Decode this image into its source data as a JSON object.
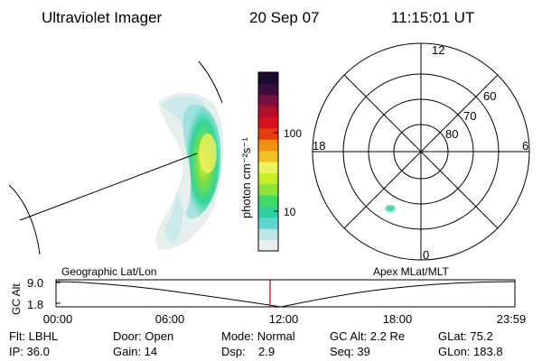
{
  "header": {
    "title": "Ultraviolet Imager",
    "date": "20 Sep 07",
    "time": "11:15:01 UT"
  },
  "colorbar": {
    "unit_label": "photon cm⁻²s⁻¹",
    "tick_labels": [
      "100",
      "10"
    ],
    "colors": [
      "#e8eeee",
      "#bfe6e6",
      "#5fd6d2",
      "#2fd0a0",
      "#41d86a",
      "#8fe23a",
      "#c8ee2a",
      "#eef062",
      "#f0c020",
      "#f09010",
      "#e83a10",
      "#d81020",
      "#b0102a",
      "#7a1040",
      "#3c0c3c",
      "#1a0a30"
    ]
  },
  "polar_plot": {
    "mlt_labels": {
      "top": "12",
      "right": "6",
      "bottom": "0",
      "left": "18"
    },
    "lat_labels": [
      "60",
      "70",
      "80"
    ]
  },
  "timeline": {
    "ylabel": "GC Alt",
    "y_ticks": [
      "9.0",
      "1.8"
    ],
    "left_caption": "Geographic Lat/Lon",
    "right_caption": "Apex MLat/MLT",
    "x_ticks": [
      "00:00",
      "06:00",
      "12:00",
      "18:00",
      "23:59"
    ]
  },
  "status": {
    "filter": "Flt: LBHL",
    "ip": "IP: 36.0",
    "door": "Door: Open",
    "gain": "Gain: 14",
    "mode": "Mode: Normal",
    "dsp_label": "Dsp:",
    "dsp_value": "2.9",
    "gc_alt": "GC Alt: 2.2 Re",
    "seq": "Seq: 39",
    "glat": "GLat: 75.2",
    "glon": "GLon: 183.8"
  }
}
